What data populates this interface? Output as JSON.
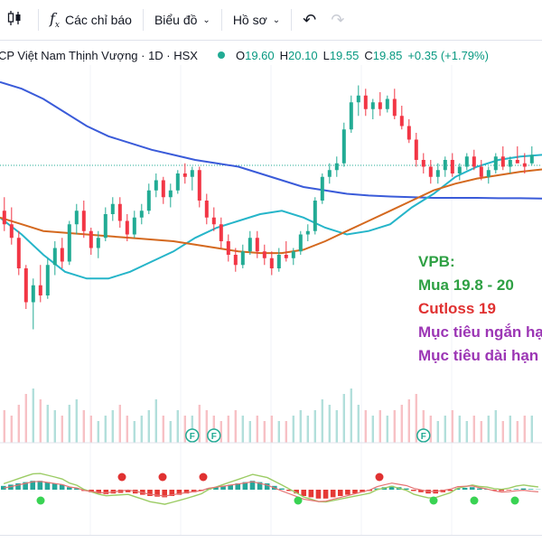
{
  "toolbar": {
    "indicators_label": "Các chỉ báo",
    "chart_type_label": "Biểu đồ",
    "profile_label": "Hồ sơ"
  },
  "symbol": {
    "title": "CP Việt Nam Thịnh Vượng · 1D · HSX",
    "o_label": "O",
    "o_value": "19.60",
    "h_label": "H",
    "h_value": "20.10",
    "l_label": "L",
    "l_value": "19.55",
    "c_label": "C",
    "c_value": "19.85",
    "change": "+0.35 (+1.79%)"
  },
  "annotations": {
    "ticker": "VPB:",
    "buy": "Mua 19.8 - 20",
    "cutloss": "Cutloss 19",
    "short_target": "Mục tiêu ngắn hạn",
    "long_target": "Mục tiêu dài hạn"
  },
  "colors": {
    "up": "#22ab94",
    "down": "#f23645",
    "ma_blue": "#3a5bd9",
    "ma_teal": "#26b5c9",
    "ma_orange": "#d4691f",
    "buy_green": "#2ea043",
    "cut_red": "#e03131",
    "target_purple": "#9c36b5"
  },
  "chart_data": {
    "type": "candlestick",
    "interval": "1D",
    "exchange": "HSX",
    "last_bar": {
      "open": 19.6,
      "high": 20.1,
      "low": 19.55,
      "close": 19.85,
      "change": 0.35,
      "change_pct": 1.79
    },
    "price_range": [
      14.5,
      22.5
    ],
    "candles": [
      {
        "o": 18.2,
        "h": 18.6,
        "l": 17.6,
        "c": 17.8
      },
      {
        "o": 17.8,
        "h": 18.3,
        "l": 17.2,
        "c": 17.4
      },
      {
        "o": 17.4,
        "h": 17.6,
        "l": 16.3,
        "c": 16.5
      },
      {
        "o": 16.5,
        "h": 16.6,
        "l": 15.3,
        "c": 15.5
      },
      {
        "o": 15.5,
        "h": 16.2,
        "l": 14.7,
        "c": 16.0
      },
      {
        "o": 16.0,
        "h": 16.6,
        "l": 15.5,
        "c": 15.7
      },
      {
        "o": 15.7,
        "h": 16.8,
        "l": 15.6,
        "c": 16.6
      },
      {
        "o": 16.6,
        "h": 17.3,
        "l": 16.3,
        "c": 17.1
      },
      {
        "o": 17.1,
        "h": 17.4,
        "l": 16.5,
        "c": 16.7
      },
      {
        "o": 16.7,
        "h": 17.9,
        "l": 16.6,
        "c": 17.8
      },
      {
        "o": 17.8,
        "h": 18.4,
        "l": 17.5,
        "c": 18.2
      },
      {
        "o": 18.2,
        "h": 18.5,
        "l": 17.4,
        "c": 17.6
      },
      {
        "o": 17.6,
        "h": 17.7,
        "l": 16.9,
        "c": 17.1
      },
      {
        "o": 17.1,
        "h": 17.6,
        "l": 16.8,
        "c": 17.4
      },
      {
        "o": 17.4,
        "h": 18.3,
        "l": 17.3,
        "c": 18.1
      },
      {
        "o": 18.1,
        "h": 18.6,
        "l": 17.9,
        "c": 18.4
      },
      {
        "o": 18.4,
        "h": 18.6,
        "l": 17.7,
        "c": 17.9
      },
      {
        "o": 17.9,
        "h": 18.1,
        "l": 17.3,
        "c": 17.5
      },
      {
        "o": 17.5,
        "h": 18.2,
        "l": 17.4,
        "c": 18.0
      },
      {
        "o": 18.0,
        "h": 18.4,
        "l": 17.8,
        "c": 18.2
      },
      {
        "o": 18.2,
        "h": 19.0,
        "l": 18.1,
        "c": 18.8
      },
      {
        "o": 18.8,
        "h": 19.3,
        "l": 18.6,
        "c": 19.1
      },
      {
        "o": 19.1,
        "h": 19.2,
        "l": 18.4,
        "c": 18.6
      },
      {
        "o": 18.6,
        "h": 19.0,
        "l": 18.3,
        "c": 18.8
      },
      {
        "o": 18.8,
        "h": 19.4,
        "l": 18.7,
        "c": 19.3
      },
      {
        "o": 19.3,
        "h": 19.6,
        "l": 19.0,
        "c": 19.2
      },
      {
        "o": 19.2,
        "h": 19.5,
        "l": 18.8,
        "c": 19.4
      },
      {
        "o": 19.4,
        "h": 19.5,
        "l": 18.3,
        "c": 18.5
      },
      {
        "o": 18.5,
        "h": 18.7,
        "l": 17.8,
        "c": 18.0
      },
      {
        "o": 18.0,
        "h": 18.3,
        "l": 17.6,
        "c": 17.8
      },
      {
        "o": 17.8,
        "h": 18.0,
        "l": 17.1,
        "c": 17.3
      },
      {
        "o": 17.3,
        "h": 17.5,
        "l": 16.7,
        "c": 16.9
      },
      {
        "o": 16.9,
        "h": 17.1,
        "l": 16.4,
        "c": 16.6
      },
      {
        "o": 16.6,
        "h": 17.2,
        "l": 16.5,
        "c": 17.0
      },
      {
        "o": 17.0,
        "h": 17.6,
        "l": 16.9,
        "c": 17.4
      },
      {
        "o": 17.4,
        "h": 17.6,
        "l": 16.8,
        "c": 17.0
      },
      {
        "o": 17.0,
        "h": 17.2,
        "l": 16.6,
        "c": 16.8
      },
      {
        "o": 16.8,
        "h": 17.0,
        "l": 16.3,
        "c": 16.5
      },
      {
        "o": 16.5,
        "h": 17.1,
        "l": 16.4,
        "c": 16.9
      },
      {
        "o": 16.9,
        "h": 17.3,
        "l": 16.7,
        "c": 16.8
      },
      {
        "o": 16.8,
        "h": 17.1,
        "l": 16.6,
        "c": 17.0
      },
      {
        "o": 17.0,
        "h": 17.6,
        "l": 16.9,
        "c": 17.5
      },
      {
        "o": 17.5,
        "h": 17.8,
        "l": 17.3,
        "c": 17.6
      },
      {
        "o": 17.6,
        "h": 18.6,
        "l": 17.5,
        "c": 18.5
      },
      {
        "o": 18.5,
        "h": 19.3,
        "l": 18.4,
        "c": 19.2
      },
      {
        "o": 19.2,
        "h": 19.6,
        "l": 19.0,
        "c": 19.4
      },
      {
        "o": 19.4,
        "h": 19.8,
        "l": 19.2,
        "c": 19.6
      },
      {
        "o": 19.6,
        "h": 20.8,
        "l": 19.5,
        "c": 20.6
      },
      {
        "o": 20.6,
        "h": 21.6,
        "l": 20.5,
        "c": 21.4
      },
      {
        "o": 21.4,
        "h": 21.9,
        "l": 21.0,
        "c": 21.6
      },
      {
        "o": 21.6,
        "h": 21.8,
        "l": 21.0,
        "c": 21.2
      },
      {
        "o": 21.2,
        "h": 21.5,
        "l": 20.9,
        "c": 21.4
      },
      {
        "o": 21.4,
        "h": 21.7,
        "l": 21.0,
        "c": 21.2
      },
      {
        "o": 21.2,
        "h": 21.6,
        "l": 21.1,
        "c": 21.5
      },
      {
        "o": 21.5,
        "h": 21.8,
        "l": 20.9,
        "c": 21.0
      },
      {
        "o": 21.0,
        "h": 21.3,
        "l": 20.6,
        "c": 20.7
      },
      {
        "o": 20.7,
        "h": 20.9,
        "l": 20.2,
        "c": 20.3
      },
      {
        "o": 20.3,
        "h": 20.5,
        "l": 19.5,
        "c": 19.7
      },
      {
        "o": 19.7,
        "h": 19.9,
        "l": 19.3,
        "c": 19.5
      },
      {
        "o": 19.5,
        "h": 19.7,
        "l": 19.0,
        "c": 19.2
      },
      {
        "o": 19.2,
        "h": 19.6,
        "l": 19.0,
        "c": 19.4
      },
      {
        "o": 19.4,
        "h": 19.8,
        "l": 19.2,
        "c": 19.7
      },
      {
        "o": 19.7,
        "h": 19.9,
        "l": 19.2,
        "c": 19.3
      },
      {
        "o": 19.3,
        "h": 19.6,
        "l": 19.1,
        "c": 19.5
      },
      {
        "o": 19.5,
        "h": 19.9,
        "l": 19.4,
        "c": 19.8
      },
      {
        "o": 19.8,
        "h": 20.0,
        "l": 19.4,
        "c": 19.5
      },
      {
        "o": 19.5,
        "h": 19.7,
        "l": 19.1,
        "c": 19.2
      },
      {
        "o": 19.2,
        "h": 19.5,
        "l": 19.0,
        "c": 19.4
      },
      {
        "o": 19.4,
        "h": 19.9,
        "l": 19.3,
        "c": 19.8
      },
      {
        "o": 19.8,
        "h": 20.1,
        "l": 19.4,
        "c": 19.5
      },
      {
        "o": 19.5,
        "h": 19.8,
        "l": 19.3,
        "c": 19.7
      },
      {
        "o": 19.7,
        "h": 20.1,
        "l": 19.6,
        "c": 19.6
      },
      {
        "o": 19.6,
        "h": 19.9,
        "l": 19.3,
        "c": 19.5
      },
      {
        "o": 19.6,
        "h": 20.1,
        "l": 19.55,
        "c": 19.85
      }
    ],
    "ma_series": [
      {
        "color": "#3a5bd9",
        "points": [
          22.0,
          21.8,
          21.5,
          21.1,
          20.7,
          20.4,
          20.2,
          20.0,
          19.85,
          19.7,
          19.6,
          19.5,
          19.3,
          19.1,
          18.9,
          18.8,
          18.7,
          18.65,
          18.62,
          18.6,
          18.58,
          18.58,
          18.58,
          18.57,
          18.57,
          18.56
        ]
      },
      {
        "color": "#26b5c9",
        "points": [
          18.0,
          17.5,
          16.9,
          16.4,
          16.2,
          16.2,
          16.4,
          16.7,
          17.0,
          17.4,
          17.7,
          17.9,
          18.1,
          18.2,
          18.0,
          17.7,
          17.5,
          17.6,
          17.8,
          18.3,
          18.7,
          19.2,
          19.5,
          19.7,
          19.8,
          19.85
        ]
      },
      {
        "color": "#d4691f",
        "points": [
          18.0,
          17.8,
          17.6,
          17.55,
          17.5,
          17.45,
          17.4,
          17.35,
          17.3,
          17.2,
          17.1,
          17.0,
          16.95,
          16.95,
          17.05,
          17.3,
          17.6,
          17.9,
          18.2,
          18.5,
          18.8,
          19.0,
          19.15,
          19.25,
          19.35,
          19.42
        ]
      }
    ],
    "volumes": [
      0.6,
      0.5,
      0.7,
      0.9,
      1.0,
      0.8,
      0.7,
      0.6,
      0.5,
      0.7,
      0.8,
      0.6,
      0.5,
      0.4,
      0.5,
      0.6,
      0.7,
      0.5,
      0.4,
      0.5,
      0.6,
      0.8,
      0.5,
      0.4,
      0.6,
      0.5,
      0.5,
      0.7,
      0.6,
      0.5,
      0.4,
      0.5,
      0.6,
      0.5,
      0.4,
      0.5,
      0.4,
      0.5,
      0.4,
      0.4,
      0.5,
      0.6,
      0.5,
      0.6,
      0.8,
      0.7,
      0.6,
      0.9,
      1.0,
      0.7,
      0.6,
      0.5,
      0.6,
      0.5,
      0.6,
      0.7,
      0.8,
      0.9,
      0.6,
      0.5,
      0.4,
      0.5,
      0.6,
      0.5,
      0.4,
      0.5,
      0.4,
      0.5,
      0.6,
      0.4,
      0.5,
      0.4,
      0.5,
      0.5
    ],
    "volume_markers": [
      "F",
      "F",
      "F"
    ],
    "macd_hist": [
      0.3,
      0.4,
      0.5,
      0.6,
      0.7,
      0.7,
      0.6,
      0.5,
      0.4,
      0.2,
      0.1,
      -0.1,
      -0.2,
      -0.3,
      -0.35,
      -0.3,
      -0.25,
      -0.2,
      -0.3,
      -0.4,
      -0.5,
      -0.55,
      -0.6,
      -0.5,
      -0.4,
      -0.3,
      -0.2,
      -0.1,
      0.1,
      0.2,
      0.3,
      0.4,
      0.5,
      0.6,
      0.7,
      0.6,
      0.5,
      0.3,
      0.1,
      -0.1,
      -0.3,
      -0.5,
      -0.6,
      -0.7,
      -0.7,
      -0.6,
      -0.5,
      -0.4,
      -0.3,
      -0.2,
      -0.1,
      0.1,
      0.2,
      0.3,
      0.2,
      0.1,
      -0.1,
      -0.2,
      -0.3,
      -0.3,
      -0.2,
      -0.1,
      0.1,
      0.15,
      0.2,
      0.1,
      0.05,
      -0.05,
      -0.1,
      -0.05,
      0.05,
      0.1,
      0.05,
      0.02
    ],
    "macd_signals": [
      {
        "kind": "buy",
        "bar": 3
      },
      {
        "kind": "sell",
        "bar": 9
      },
      {
        "kind": "sell",
        "bar": 12
      },
      {
        "kind": "sell",
        "bar": 15
      },
      {
        "kind": "buy",
        "bar": 22
      },
      {
        "kind": "sell",
        "bar": 28
      },
      {
        "kind": "buy",
        "bar": 32
      },
      {
        "kind": "buy",
        "bar": 35
      },
      {
        "kind": "buy",
        "bar": 38
      }
    ]
  }
}
